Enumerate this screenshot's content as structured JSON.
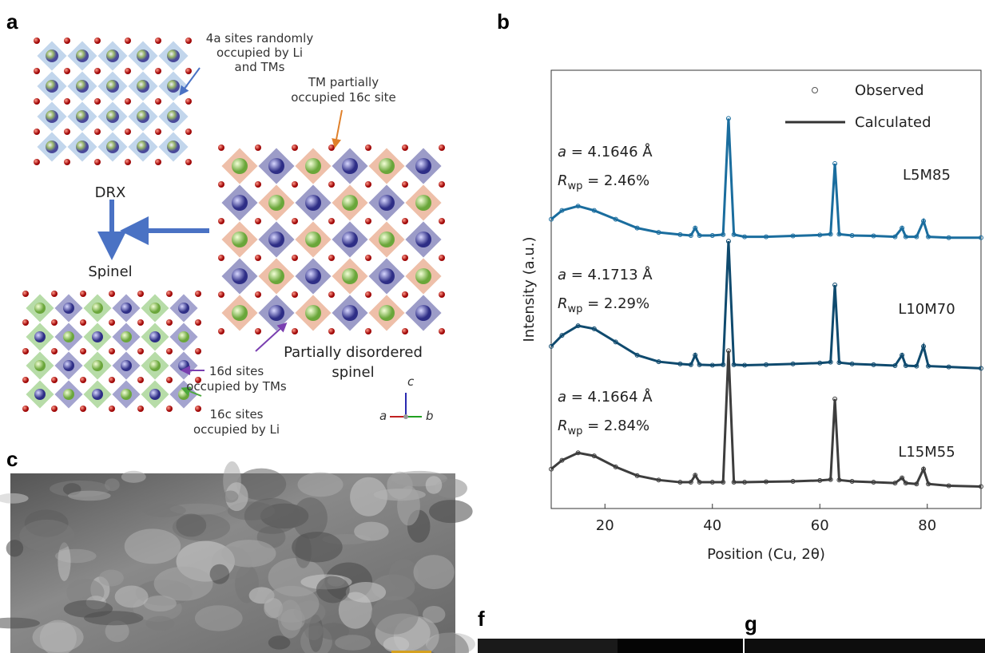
{
  "panel_labels": {
    "a": "a",
    "b": "b",
    "c": "c",
    "f": "f",
    "g": "g"
  },
  "diagram": {
    "drx_note": [
      "4a sites randomly",
      "occupied by Li",
      "and TMs"
    ],
    "tm_note": [
      "TM partially",
      "occupied 16c site"
    ],
    "drx": "DRX",
    "spinel": "Spinel",
    "pds": [
      "Partially disordered",
      "spinel"
    ],
    "d16_note": [
      "16d sites",
      "occupied by TMs"
    ],
    "c16_note": [
      "16c sites",
      "occupied by Li"
    ],
    "axes": {
      "c": "c",
      "a": "a",
      "b": "b"
    }
  },
  "chart_data": {
    "type": "line",
    "x_label": "Position (Cu, 2θ)",
    "y_label": "Intensity (a.u.)",
    "xlim": [
      10,
      90
    ],
    "xticks": [
      20,
      40,
      60,
      80
    ],
    "ylim": [
      0,
      100
    ],
    "legend": {
      "observed": "Observed",
      "calculated": "Calculated"
    },
    "x": [
      10,
      12,
      15,
      18,
      22,
      26,
      30,
      34,
      36,
      36.8,
      37.6,
      40,
      42,
      43,
      44,
      46,
      50,
      55,
      60,
      62,
      62.8,
      63.6,
      66,
      70,
      74,
      75.3,
      76,
      78,
      79.3,
      80.2,
      84,
      90
    ],
    "series": [
      {
        "name": "L5M85",
        "color": "#1a6d9e",
        "values": [
          66,
          68,
          69,
          68,
          66,
          64,
          63,
          62.5,
          62.3,
          64,
          62.3,
          62.3,
          62.5,
          89,
          62.5,
          62,
          62,
          62.2,
          62.4,
          62.6,
          78.7,
          62.6,
          62.3,
          62.2,
          62,
          64,
          62,
          62,
          65.6,
          62,
          61.8,
          61.8
        ],
        "annotation": {
          "a": "a",
          "a_value": " = 4.1646 Å",
          "r": "R",
          "r_sub": "wp",
          "r_value": " = 2.46%"
        }
      },
      {
        "name": "L10M70",
        "color": "#0f4a6e",
        "values": [
          37,
          39.5,
          41.7,
          41,
          38,
          35,
          33.5,
          33,
          32.8,
          35,
          32.8,
          32.7,
          32.8,
          61,
          32.8,
          32.7,
          32.8,
          33,
          33.2,
          33.4,
          51,
          33.3,
          33,
          32.8,
          32.6,
          35,
          32.6,
          32.5,
          37,
          32.5,
          32.3,
          32
        ]
      },
      {
        "name": "L15M55",
        "color": "#3d3d3d",
        "values": [
          9,
          11,
          12.7,
          12,
          9.5,
          7.5,
          6.5,
          6,
          6,
          7.6,
          6,
          6,
          6,
          36,
          6,
          6,
          6.1,
          6.2,
          6.4,
          6.6,
          25,
          6.5,
          6.2,
          6,
          5.8,
          7,
          5.8,
          5.6,
          9,
          5.6,
          5.2,
          5
        ]
      }
    ],
    "annotations": [
      {
        "a": "a",
        "a_value": " = 4.1646 Å",
        "r": "R",
        "r_sub": "wp",
        "r_value": " = 2.46%"
      },
      {
        "a": "a",
        "a_value": " = 4.1713 Å",
        "r": "R",
        "r_sub": "wp",
        "r_value": " = 2.29%"
      },
      {
        "a": "a",
        "a_value": " = 4.1664 Å",
        "r": "R",
        "r_sub": "wp",
        "r_value": " = 2.84%"
      }
    ]
  }
}
